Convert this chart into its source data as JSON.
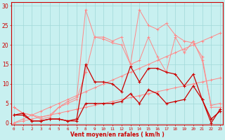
{
  "bg_color": "#c8f0f0",
  "grid_color": "#a0d8d8",
  "line_color_dark": "#cc0000",
  "line_color_light": "#ff8888",
  "xlabel": "Vent moyen/en rafales ( km/h )",
  "ylabel_ticks": [
    0,
    5,
    10,
    15,
    20,
    25,
    30
  ],
  "x_ticks": [
    0,
    1,
    2,
    3,
    4,
    5,
    6,
    7,
    8,
    9,
    10,
    11,
    12,
    13,
    14,
    15,
    16,
    17,
    18,
    19,
    20,
    21,
    22,
    23
  ],
  "xlim": [
    -0.3,
    23.3
  ],
  "ylim": [
    -0.5,
    31
  ],
  "series_light": [
    [
      4,
      2.5,
      2,
      1,
      1.5,
      4,
      5.5,
      6.5,
      29,
      22,
      21.5,
      20.5,
      20,
      15,
      29,
      25,
      24,
      25.5,
      22.5,
      21,
      20.5,
      17,
      4,
      4
    ],
    [
      4,
      2.5,
      2,
      1.5,
      2,
      4,
      5,
      6,
      13,
      22,
      22,
      21,
      22,
      15,
      16,
      22,
      17,
      13,
      22,
      18,
      21,
      16,
      4.5,
      5
    ],
    [
      0,
      1,
      2,
      3,
      4,
      5,
      6,
      7,
      8,
      9,
      10,
      11,
      12,
      13,
      14,
      15,
      16,
      17,
      18,
      19,
      20,
      21,
      22,
      23
    ],
    [
      0,
      0.5,
      1,
      1.5,
      2,
      2.5,
      3,
      3.5,
      4,
      4.5,
      5,
      5.5,
      6,
      6.5,
      7,
      7.5,
      8,
      8.5,
      9,
      9.5,
      10,
      10.5,
      11,
      11.5
    ]
  ],
  "series_dark": [
    [
      2,
      2.5,
      0.5,
      0.5,
      1,
      1,
      0.5,
      1,
      15,
      10.5,
      10.5,
      10,
      8,
      14.5,
      10.5,
      14,
      14,
      13,
      12.5,
      9.5,
      12.5,
      6,
      1,
      3
    ],
    [
      2,
      2,
      0.5,
      0.5,
      1,
      1,
      0.5,
      0.5,
      5,
      5,
      5,
      5,
      5.5,
      7.5,
      5,
      8.5,
      7.5,
      5,
      5.5,
      6,
      9.5,
      6,
      0,
      3.5
    ]
  ],
  "marker_light": "D",
  "marker_dark": "D",
  "lw_light": 0.7,
  "lw_dark": 0.9
}
